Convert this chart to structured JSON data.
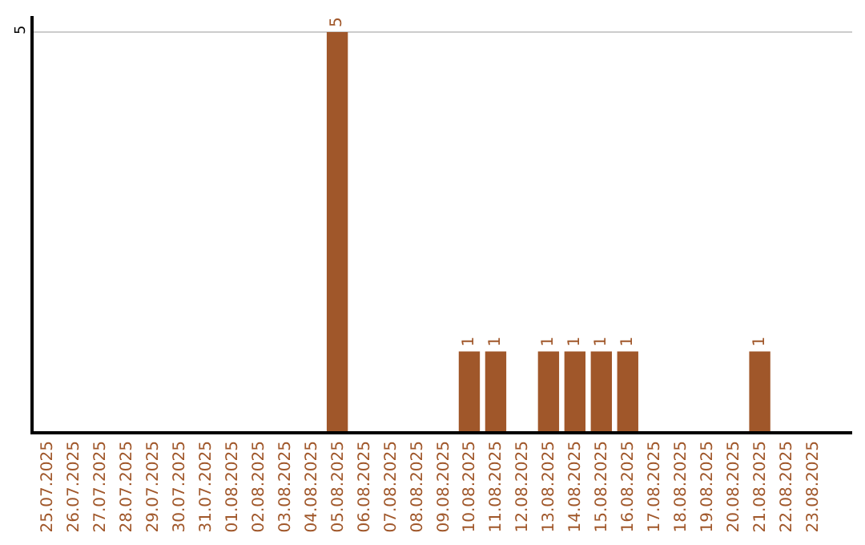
{
  "chart_data": {
    "type": "bar",
    "categories": [
      "25.07.2025",
      "26.07.2025",
      "27.07.2025",
      "28.07.2025",
      "29.07.2025",
      "30.07.2025",
      "31.07.2025",
      "01.08.2025",
      "02.08.2025",
      "03.08.2025",
      "04.08.2025",
      "05.08.2025",
      "06.08.2025",
      "07.08.2025",
      "08.08.2025",
      "09.08.2025",
      "10.08.2025",
      "11.08.2025",
      "12.08.2025",
      "13.08.2025",
      "14.08.2025",
      "15.08.2025",
      "16.08.2025",
      "17.08.2025",
      "18.08.2025",
      "19.08.2025",
      "20.08.2025",
      "21.08.2025",
      "22.08.2025",
      "23.08.2025"
    ],
    "values": [
      0,
      0,
      0,
      0,
      0,
      0,
      0,
      0,
      0,
      0,
      0,
      5,
      0,
      0,
      0,
      0,
      1,
      1,
      0,
      1,
      1,
      1,
      1,
      0,
      0,
      0,
      0,
      1,
      0,
      0
    ],
    "value_labels": [
      null,
      null,
      null,
      null,
      null,
      null,
      null,
      null,
      null,
      null,
      null,
      "5",
      null,
      null,
      null,
      null,
      "1",
      "1",
      null,
      "1",
      "1",
      "1",
      "1",
      null,
      null,
      null,
      null,
      "1",
      null,
      null
    ],
    "color": "#a0572a",
    "ylim": [
      0,
      5.2
    ],
    "yticks": [
      5
    ],
    "grid": "y"
  }
}
